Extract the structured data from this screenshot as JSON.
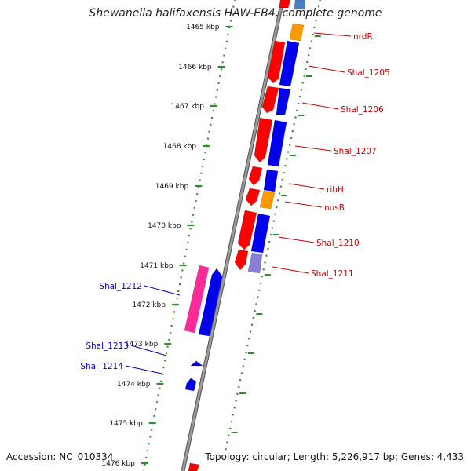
{
  "title": "Shewanella halifaxensis HAW-EB4, complete genome",
  "footer": {
    "accession": "Accession: NC_010334",
    "summary": "Topology: circular; Length: 5,226,917 bp; Genes: 4,433"
  },
  "colors": {
    "backbone": "#9a9a9a",
    "ticks": "#2e8b2e",
    "label_forward": "#cc0000",
    "label_reverse": "#0000cc",
    "gene_red": "#ff0000",
    "gene_blue": "#0000ee",
    "gene_orange": "#ff9900",
    "gene_pink": "#ff2a9a",
    "gene_lavender": "#8a7fd6"
  },
  "ticks": [
    {
      "label": "1465 kbp",
      "kbp": 1465
    },
    {
      "label": "1466 kbp",
      "kbp": 1466
    },
    {
      "label": "1467 kbp",
      "kbp": 1467
    },
    {
      "label": "1468 kbp",
      "kbp": 1468
    },
    {
      "label": "1469 kbp",
      "kbp": 1469
    },
    {
      "label": "1470 kbp",
      "kbp": 1470
    },
    {
      "label": "1471 kbp",
      "kbp": 1471
    },
    {
      "label": "1472 kbp",
      "kbp": 1472
    },
    {
      "label": "1473 kbp",
      "kbp": 1473
    },
    {
      "label": "1474 kbp",
      "kbp": 1474
    },
    {
      "label": "1475 kbp",
      "kbp": 1475
    },
    {
      "label": "1476 kbp",
      "kbp": 1476
    }
  ],
  "gene_labels": [
    {
      "name": "nrdR",
      "side": "right"
    },
    {
      "name": "Shal_1205",
      "side": "right"
    },
    {
      "name": "Shal_1206",
      "side": "right"
    },
    {
      "name": "Shal_1207",
      "side": "right"
    },
    {
      "name": "ribH",
      "side": "right"
    },
    {
      "name": "nusB",
      "side": "right"
    },
    {
      "name": "Shal_1210",
      "side": "right"
    },
    {
      "name": "Shal_1211",
      "side": "right"
    },
    {
      "name": "Shal_1212",
      "side": "left"
    },
    {
      "name": "Shal_1213",
      "side": "left"
    },
    {
      "name": "Shal_1214",
      "side": "left"
    }
  ]
}
